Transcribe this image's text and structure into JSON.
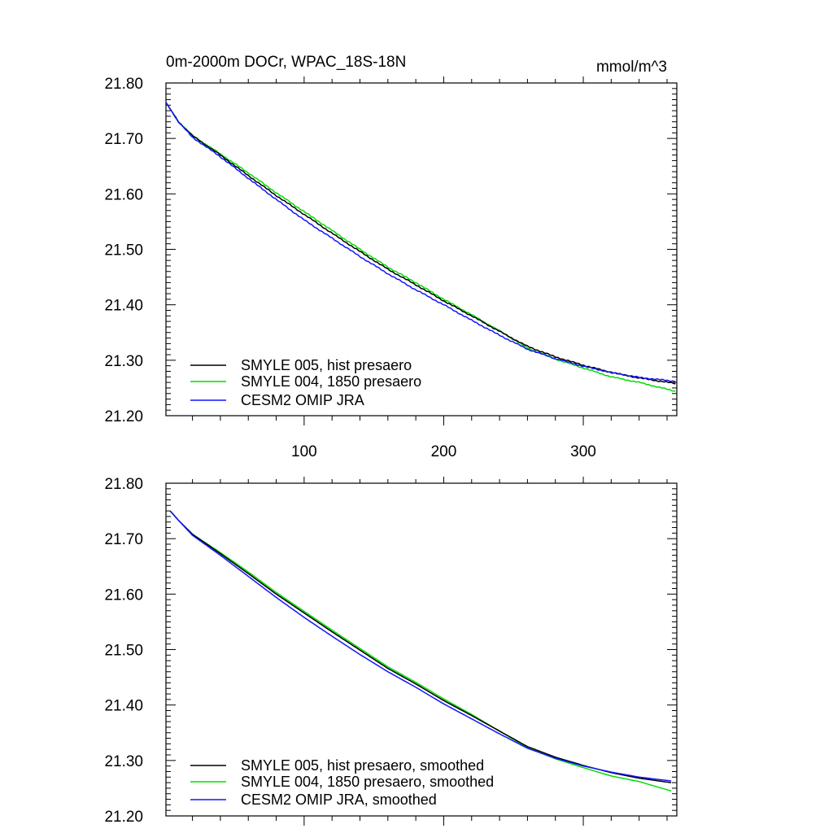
{
  "units": "mmol/m^3",
  "colors": {
    "black": "#000000",
    "green": "#00dd00",
    "blue": "#1414ff"
  },
  "chart_data": [
    {
      "type": "line",
      "title": "0m-2000m DOCr, WPAC_18S-18N",
      "units_label": "mmol/m^3",
      "xlabel": "",
      "ylabel": "",
      "xlim": [
        1,
        367
      ],
      "ylim": [
        21.2,
        21.8
      ],
      "x_ticks": [
        100,
        200,
        300
      ],
      "x_tick_labels": [
        "100",
        "200",
        "300"
      ],
      "show_x_tick_labels": true,
      "y_ticks": [
        21.2,
        21.3,
        21.4,
        21.5,
        21.6,
        21.7,
        21.8
      ],
      "y_tick_labels": [
        "21.20",
        "21.30",
        "21.40",
        "21.50",
        "21.60",
        "21.70",
        "21.80"
      ],
      "legend_position": "bottom-left",
      "series": [
        {
          "name": "SMYLE 005, hist presaero",
          "color": "#000000",
          "x": [
            1,
            10,
            20,
            40,
            60,
            80,
            100,
            120,
            140,
            160,
            180,
            200,
            220,
            240,
            260,
            280,
            300,
            320,
            340,
            366
          ],
          "values": [
            21.765,
            21.73,
            21.705,
            21.67,
            21.633,
            21.597,
            21.563,
            21.529,
            21.496,
            21.464,
            21.436,
            21.407,
            21.38,
            21.352,
            21.325,
            21.306,
            21.291,
            21.278,
            21.268,
            21.258
          ]
        },
        {
          "name": "SMYLE 004, 1850 presaero",
          "color": "#00dd00",
          "x": [
            1,
            10,
            20,
            40,
            60,
            80,
            100,
            120,
            140,
            160,
            180,
            200,
            220,
            240,
            260,
            280,
            300,
            320,
            340,
            366
          ],
          "values": [
            21.765,
            21.73,
            21.705,
            21.672,
            21.638,
            21.602,
            21.568,
            21.534,
            21.5,
            21.468,
            21.44,
            21.41,
            21.382,
            21.353,
            21.322,
            21.302,
            21.286,
            21.27,
            21.26,
            21.244
          ]
        },
        {
          "name": "CESM2 OMIP JRA",
          "color": "#1414ff",
          "x": [
            1,
            10,
            20,
            40,
            60,
            80,
            100,
            120,
            140,
            160,
            180,
            200,
            220,
            240,
            260,
            280,
            300,
            320,
            340,
            366
          ],
          "values": [
            21.765,
            21.73,
            21.702,
            21.667,
            21.628,
            21.59,
            21.553,
            21.52,
            21.487,
            21.456,
            21.427,
            21.4,
            21.372,
            21.345,
            21.32,
            21.303,
            21.289,
            21.278,
            21.269,
            21.262
          ]
        }
      ]
    },
    {
      "type": "line",
      "title": "",
      "units_label": "",
      "xlabel": "",
      "ylabel": "",
      "xlim": [
        1,
        367
      ],
      "ylim": [
        21.2,
        21.8
      ],
      "x_ticks": [
        100,
        200,
        300
      ],
      "x_tick_labels": [
        "",
        "",
        ""
      ],
      "show_x_tick_labels": false,
      "y_ticks": [
        21.2,
        21.3,
        21.4,
        21.5,
        21.6,
        21.7,
        21.8
      ],
      "y_tick_labels": [
        "21.20",
        "21.30",
        "21.40",
        "21.50",
        "21.60",
        "21.70",
        "21.80"
      ],
      "legend_position": "bottom-left",
      "series": [
        {
          "name": "SMYLE 005, hist presaero, smoothed",
          "color": "#000000",
          "x": [
            4,
            10,
            20,
            40,
            60,
            80,
            100,
            120,
            140,
            160,
            180,
            200,
            220,
            240,
            260,
            280,
            300,
            320,
            340,
            363
          ],
          "values": [
            21.75,
            21.733,
            21.708,
            21.673,
            21.637,
            21.6,
            21.566,
            21.532,
            21.499,
            21.466,
            21.438,
            21.408,
            21.381,
            21.353,
            21.325,
            21.306,
            21.291,
            21.278,
            21.268,
            21.26
          ]
        },
        {
          "name": "SMYLE 004, 1850 presaero, smoothed",
          "color": "#00dd00",
          "x": [
            4,
            10,
            20,
            40,
            60,
            80,
            100,
            120,
            140,
            160,
            180,
            200,
            220,
            240,
            260,
            280,
            300,
            320,
            340,
            363
          ],
          "values": [
            21.75,
            21.733,
            21.708,
            21.675,
            21.64,
            21.603,
            21.569,
            21.535,
            21.502,
            21.469,
            21.441,
            21.411,
            21.383,
            21.353,
            21.323,
            21.303,
            21.287,
            21.272,
            21.262,
            21.245
          ]
        },
        {
          "name": "CESM2 OMIP JRA, smoothed",
          "color": "#1414ff",
          "x": [
            4,
            10,
            20,
            40,
            60,
            80,
            100,
            120,
            140,
            160,
            180,
            200,
            220,
            240,
            260,
            280,
            300,
            320,
            340,
            363
          ],
          "values": [
            21.75,
            21.733,
            21.706,
            21.67,
            21.632,
            21.594,
            21.558,
            21.524,
            21.491,
            21.46,
            21.432,
            21.402,
            21.375,
            21.348,
            21.322,
            21.304,
            21.29,
            21.279,
            21.27,
            21.263
          ]
        }
      ]
    }
  ]
}
